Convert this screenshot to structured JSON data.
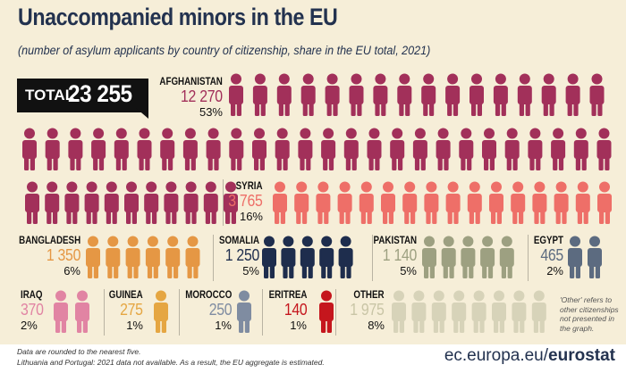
{
  "header": {
    "title": "Unaccompanied minors in the EU",
    "subtitle": "(number of asylum applicants by country of citizenship, share in the EU total, 2021)"
  },
  "total": {
    "label": "TOTAL",
    "value": "23 255"
  },
  "colors": {
    "background": "#f6eed8",
    "title": "#23324f",
    "afghanistan": "#a2305a",
    "syria": "#ee6f68",
    "bangladesh": "#e59744",
    "somalia": "#1e2d4d",
    "pakistan": "#9da081",
    "egypt": "#5c6b80",
    "iraq": "#e184a3",
    "guinea": "#e5a642",
    "morocco": "#7f8ca1",
    "eritrea": "#c5161d",
    "other": "#d7d3b9"
  },
  "chart_data": {
    "type": "pictogram",
    "title": "Unaccompanied minors in the EU",
    "subtitle": "(number of asylum applicants by country of citizenship, share in the EU total, 2021)",
    "total": 23255,
    "series": [
      {
        "country": "AFGHANISTAN",
        "value": 12270,
        "value_label": "12 270",
        "share": "53%",
        "icons": 53
      },
      {
        "country": "SYRIA",
        "value": 3765,
        "value_label": "3 765",
        "share": "16%",
        "icons": 16
      },
      {
        "country": "BANGLADESH",
        "value": 1350,
        "value_label": "1 350",
        "share": "6%",
        "icons": 6
      },
      {
        "country": "SOMALIA",
        "value": 1250,
        "value_label": "1 250",
        "share": "5%",
        "icons": 5
      },
      {
        "country": "PAKISTAN",
        "value": 1140,
        "value_label": "1 140",
        "share": "5%",
        "icons": 5
      },
      {
        "country": "EGYPT",
        "value": 465,
        "value_label": "465",
        "share": "2%",
        "icons": 2
      },
      {
        "country": "IRAQ",
        "value": 370,
        "value_label": "370",
        "share": "2%",
        "icons": 2
      },
      {
        "country": "GUINEA",
        "value": 275,
        "value_label": "275",
        "share": "1%",
        "icons": 1
      },
      {
        "country": "MOROCCO",
        "value": 250,
        "value_label": "250",
        "share": "1%",
        "icons": 1
      },
      {
        "country": "ERITREA",
        "value": 140,
        "value_label": "140",
        "share": "1%",
        "icons": 1
      },
      {
        "country": "OTHER",
        "value": 1975,
        "value_label": "1 975",
        "share": "8%",
        "icons": 8
      }
    ],
    "other_note": "'Other' refers to other citizenships not presented in the graph."
  },
  "footer": {
    "note1": "Data are rounded to the nearest five.",
    "note2": "Lithuania and Portugal: 2021 data not available. As a result, the EU aggregate is estimated.",
    "url_prefix": "ec.europa.eu/",
    "url_brand": "eurostat"
  }
}
